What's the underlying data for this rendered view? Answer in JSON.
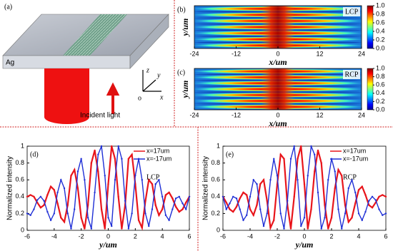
{
  "panel_a": {
    "label": "(a)",
    "material": "Ag",
    "axis_z": "z",
    "axis_y": "y",
    "axis_x": "x",
    "origin": "o",
    "caption": "Incident light"
  },
  "chart_data": [
    {
      "type": "heatmap",
      "panel": "(b)",
      "annotation": "LCP",
      "xlabel": "x/um",
      "ylabel": "y/um",
      "xlim": [
        -24,
        24
      ],
      "xticks": [
        -24,
        -12,
        0,
        12,
        24
      ],
      "colorbar": {
        "lim": [
          0,
          1
        ],
        "ticks": [
          {
            "value": 0,
            "label": "0.0"
          },
          0.2,
          0.4,
          0.6,
          0.8,
          {
            "value": 1,
            "label": "1.0"
          }
        ]
      }
    },
    {
      "type": "heatmap",
      "panel": "(c)",
      "annotation": "RCP",
      "xlabel": "x/um",
      "ylabel": "y/um",
      "xlim": [
        -24,
        24
      ],
      "xticks": [
        -24,
        -12,
        0,
        12,
        24
      ],
      "colorbar": {
        "lim": [
          0,
          1
        ],
        "ticks": [
          {
            "value": 0,
            "label": "0.0"
          },
          0.2,
          0.4,
          0.6,
          0.8,
          {
            "value": 1,
            "label": "1.0"
          }
        ]
      }
    },
    {
      "type": "line",
      "panel": "(d)",
      "annotation": "LCP",
      "xlabel": "y/um",
      "ylabel": "Normalized intensity",
      "xlim": [
        -6,
        6
      ],
      "xticks": [
        -6,
        -4,
        -2,
        0,
        2,
        4,
        6
      ],
      "ylim": [
        0,
        1
      ],
      "yticks": [
        0,
        0.2,
        0.4,
        0.6,
        0.8,
        1
      ],
      "x": [
        -6,
        -5.75,
        -5.5,
        -5.25,
        -5,
        -4.75,
        -4.5,
        -4.25,
        -4,
        -3.75,
        -3.5,
        -3.25,
        -3,
        -2.75,
        -2.5,
        -2.25,
        -2,
        -1.75,
        -1.5,
        -1.25,
        -1,
        -0.75,
        -0.5,
        -0.25,
        0,
        0.25,
        0.5,
        0.75,
        1,
        1.25,
        1.5,
        1.75,
        2,
        2.25,
        2.5,
        2.75,
        3,
        3.25,
        3.5,
        3.75,
        4,
        4.25,
        4.5,
        4.75,
        5,
        5.25,
        5.5,
        5.75,
        6
      ],
      "series": [
        {
          "name": "x=17um",
          "color": "#e8151b",
          "values": [
            0.4,
            0.42,
            0.4,
            0.33,
            0.27,
            0.3,
            0.42,
            0.52,
            0.48,
            0.32,
            0.15,
            0.1,
            0.3,
            0.65,
            0.72,
            0.5,
            0.15,
            0.02,
            0.3,
            0.8,
            0.95,
            0.7,
            0.25,
            0.02,
            0.55,
            1.0,
            0.85,
            0.4,
            0.02,
            0.3,
            0.85,
            0.9,
            0.55,
            0.12,
            0.03,
            0.35,
            0.6,
            0.55,
            0.3,
            0.18,
            0.25,
            0.42,
            0.45,
            0.38,
            0.28,
            0.22,
            0.25,
            0.33,
            0.4
          ]
        },
        {
          "name": "x=-17um",
          "color": "#1f2fd6",
          "values": [
            0.2,
            0.18,
            0.25,
            0.36,
            0.4,
            0.35,
            0.22,
            0.12,
            0.2,
            0.45,
            0.6,
            0.5,
            0.2,
            0.02,
            0.25,
            0.7,
            0.85,
            0.6,
            0.15,
            0.02,
            0.45,
            0.9,
            1.0,
            0.65,
            0.15,
            0.05,
            0.6,
            1.0,
            0.85,
            0.35,
            0.02,
            0.2,
            0.65,
            0.85,
            0.6,
            0.2,
            0.05,
            0.25,
            0.55,
            0.6,
            0.4,
            0.18,
            0.12,
            0.25,
            0.38,
            0.4,
            0.32,
            0.25,
            0.4
          ]
        }
      ]
    },
    {
      "type": "line",
      "panel": "(e)",
      "annotation": "RCP",
      "xlabel": "y/um",
      "ylabel": "Normalized intensity",
      "xlim": [
        -6,
        6
      ],
      "xticks": [
        -6,
        -4,
        -2,
        0,
        2,
        4,
        6
      ],
      "ylim": [
        0,
        1
      ],
      "yticks": [
        0,
        0.2,
        0.4,
        0.6,
        0.8,
        1
      ],
      "x": [
        -6,
        -5.75,
        -5.5,
        -5.25,
        -5,
        -4.75,
        -4.5,
        -4.25,
        -4,
        -3.75,
        -3.5,
        -3.25,
        -3,
        -2.75,
        -2.5,
        -2.25,
        -2,
        -1.75,
        -1.5,
        -1.25,
        -1,
        -0.75,
        -0.5,
        -0.25,
        0,
        0.25,
        0.5,
        0.75,
        1,
        1.25,
        1.5,
        1.75,
        2,
        2.25,
        2.5,
        2.75,
        3,
        3.25,
        3.5,
        3.75,
        4,
        4.25,
        4.5,
        4.75,
        5,
        5.25,
        5.5,
        5.75,
        6
      ],
      "series": [
        {
          "name": "x=17um",
          "color": "#e8151b",
          "values": [
            0.4,
            0.33,
            0.25,
            0.22,
            0.28,
            0.38,
            0.45,
            0.42,
            0.25,
            0.18,
            0.3,
            0.55,
            0.6,
            0.35,
            0.03,
            0.12,
            0.55,
            0.9,
            0.85,
            0.3,
            0.02,
            0.4,
            0.85,
            1.0,
            0.55,
            0.02,
            0.25,
            0.7,
            0.95,
            0.8,
            0.3,
            0.02,
            0.15,
            0.5,
            0.72,
            0.65,
            0.3,
            0.1,
            0.15,
            0.32,
            0.48,
            0.52,
            0.42,
            0.3,
            0.27,
            0.33,
            0.4,
            0.42,
            0.4
          ]
        },
        {
          "name": "x=-17um",
          "color": "#1f2fd6",
          "values": [
            0.4,
            0.25,
            0.32,
            0.4,
            0.38,
            0.25,
            0.12,
            0.18,
            0.4,
            0.6,
            0.55,
            0.25,
            0.05,
            0.2,
            0.6,
            0.85,
            0.65,
            0.2,
            0.02,
            0.35,
            0.85,
            1.0,
            0.6,
            0.05,
            0.15,
            0.65,
            1.0,
            0.9,
            0.45,
            0.02,
            0.15,
            0.6,
            0.85,
            0.7,
            0.25,
            0.02,
            0.2,
            0.5,
            0.6,
            0.45,
            0.2,
            0.12,
            0.22,
            0.35,
            0.4,
            0.36,
            0.25,
            0.18,
            0.2
          ]
        }
      ]
    }
  ]
}
